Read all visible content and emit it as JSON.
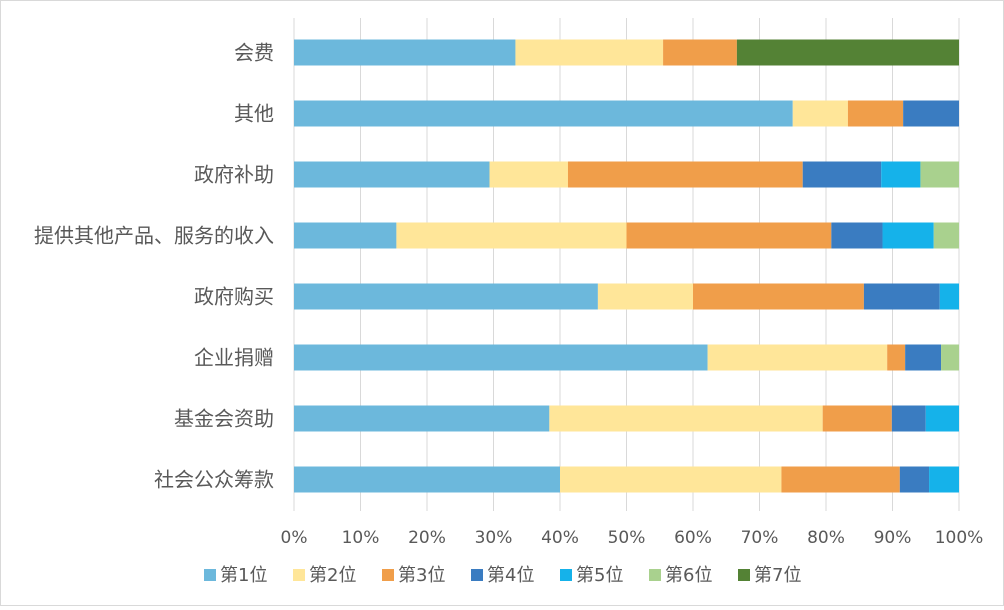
{
  "chart_data": {
    "type": "bar",
    "orientation": "horizontal",
    "stacked": "percent",
    "categories": [
      "会费",
      "其他",
      "政府补助",
      "提供其他产品、服务的收入",
      "政府购买",
      "企业捐赠",
      "基金会资助",
      "社会公众筹款"
    ],
    "xlim": [
      0,
      100
    ],
    "x_ticks": [
      "0%",
      "10%",
      "20%",
      "30%",
      "40%",
      "50%",
      "60%",
      "70%",
      "80%",
      "90%",
      "100%"
    ],
    "grid": "vertical",
    "legend_position": "bottom",
    "series": [
      {
        "name": "第1位",
        "color": "#6CB8DC",
        "values": [
          33.3,
          75.0,
          29.4,
          15.4,
          45.7,
          62.2,
          38.4,
          40.0
        ]
      },
      {
        "name": "第2位",
        "color": "#FFE699",
        "values": [
          22.2,
          8.3,
          11.8,
          34.6,
          14.3,
          27.0,
          41.1,
          33.3
        ]
      },
      {
        "name": "第3位",
        "color": "#F09E4A",
        "values": [
          11.1,
          8.3,
          35.3,
          30.8,
          25.7,
          2.7,
          10.4,
          17.8
        ]
      },
      {
        "name": "第4位",
        "color": "#3A7CC1",
        "values": [
          0,
          8.4,
          11.8,
          7.7,
          11.4,
          5.4,
          5.1,
          4.4
        ]
      },
      {
        "name": "第5位",
        "color": "#15B2EA",
        "values": [
          0,
          0,
          5.9,
          7.7,
          2.9,
          0,
          5.0,
          4.5
        ]
      },
      {
        "name": "第6位",
        "color": "#A9D18E",
        "values": [
          0,
          0,
          5.8,
          3.8,
          0,
          2.7,
          0,
          0
        ]
      },
      {
        "name": "第7位",
        "color": "#548235",
        "values": [
          33.4,
          0,
          0,
          0,
          0,
          0,
          0,
          0
        ]
      }
    ]
  }
}
